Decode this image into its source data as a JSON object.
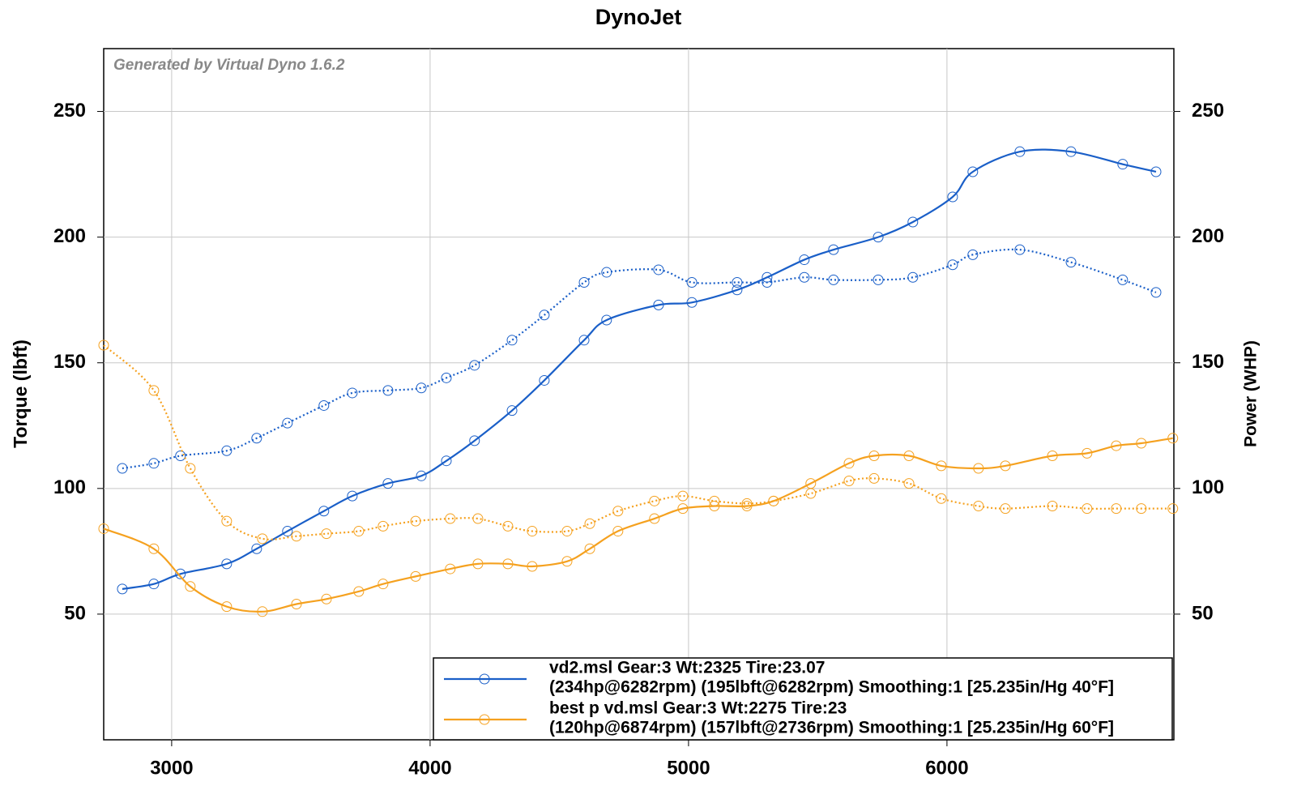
{
  "chart_data": {
    "type": "line",
    "title": "DynoJet",
    "watermark": "Generated by Virtual Dyno 1.6.2",
    "ylabel": "Torque (lbft)",
    "y2label": "Power (WHP)",
    "xlim": [
      2737,
      6878
    ],
    "xticks": [
      3000,
      4000,
      5000,
      6000
    ],
    "ylim": [
      0,
      275
    ],
    "yticks": [
      50,
      100,
      150,
      200,
      250
    ],
    "y2lim": [
      0,
      275
    ],
    "y2ticks": [
      50,
      100,
      150,
      200,
      250
    ],
    "grid": true,
    "legend": "lower right",
    "series": [
      {
        "name": "vd2.msl Gear:3 Wt:2325 Tire:23.07",
        "detail": "(234hp@6282rpm) (195lbft@6282rpm) Smoothing:1 [25.235in/Hg 40°F]",
        "color": "#1a5fc8",
        "x": [
          2809,
          2931,
          3034,
          3213,
          3329,
          3448,
          3589,
          3699,
          3837,
          3966,
          4063,
          4172,
          4317,
          4442,
          4596,
          4683,
          4884,
          5013,
          5188,
          5304,
          5448,
          5561,
          5734,
          5868,
          6022,
          6100,
          6282,
          6480,
          6680,
          6809
        ],
        "power": [
          60,
          62,
          66,
          70,
          76,
          83,
          91,
          97,
          102,
          105,
          111,
          119,
          131,
          143,
          159,
          167,
          173,
          174,
          179,
          184,
          191,
          195,
          200,
          206,
          216,
          226,
          234,
          234,
          229,
          226
        ],
        "torque": [
          108,
          110,
          113,
          115,
          120,
          126,
          133,
          138,
          139,
          140,
          144,
          149,
          159,
          169,
          182,
          186,
          187,
          182,
          182,
          182,
          184,
          183,
          183,
          184,
          189,
          193,
          195,
          190,
          183,
          178
        ]
      },
      {
        "name": "best p vd.msl Gear:3 Wt:2275 Tire:23",
        "detail": "(120hp@6874rpm) (157lbft@2736rpm) Smoothing:1 [25.235in/Hg 60°F]",
        "color": "#f5a11f",
        "x": [
          2737,
          2931,
          3072,
          3213,
          3351,
          3483,
          3599,
          3724,
          3818,
          3944,
          4078,
          4185,
          4301,
          4395,
          4530,
          4618,
          4727,
          4868,
          4978,
          5100,
          5226,
          5329,
          5473,
          5621,
          5718,
          5853,
          5978,
          6122,
          6226,
          6408,
          6542,
          6655,
          6752,
          6874
        ],
        "power": [
          84,
          76,
          61,
          53,
          51,
          54,
          56,
          59,
          62,
          65,
          68,
          70,
          70,
          69,
          71,
          76,
          83,
          88,
          92,
          93,
          93,
          95,
          102,
          110,
          113,
          113,
          109,
          108,
          109,
          113,
          114,
          117,
          118,
          120
        ],
        "torque": [
          157,
          139,
          108,
          87,
          80,
          81,
          82,
          83,
          85,
          87,
          88,
          88,
          85,
          83,
          83,
          86,
          91,
          95,
          97,
          95,
          94,
          95,
          98,
          103,
          104,
          102,
          96,
          93,
          92,
          93,
          92,
          92,
          92,
          92
        ]
      }
    ]
  }
}
